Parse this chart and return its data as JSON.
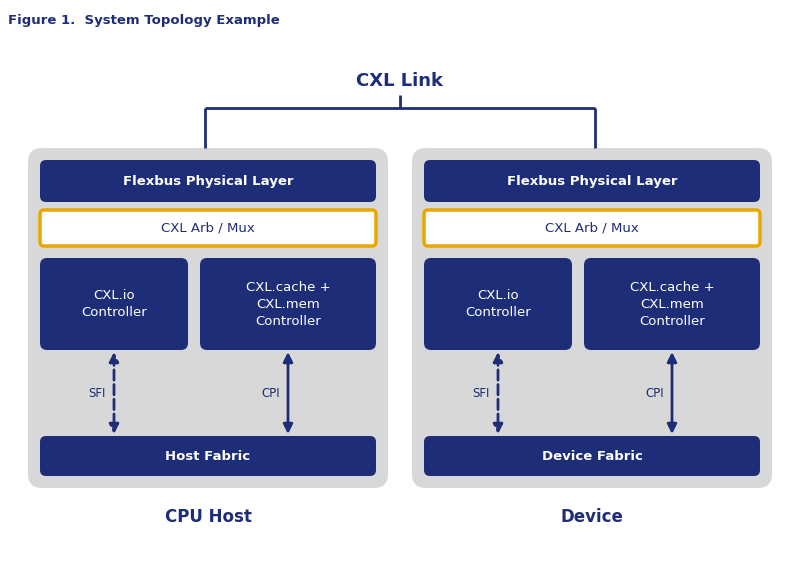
{
  "title": "Figure 1.  System Topology Example",
  "cxl_link_label": "CXL Link",
  "dark_blue": "#1e2d78",
  "light_gray_bg": "#d8d8d8",
  "white": "#ffffff",
  "arrow_color": "#1e2d78",
  "orange_border": "#e8a800",
  "left_box": {
    "label": "CPU Host",
    "flexbus": "Flexbus Physical Layer",
    "arb_mux": "CXL Arb / Mux",
    "controller1": "CXL.io\nController",
    "controller2": "CXL.cache +\nCXL.mem\nController",
    "fabric": "Host Fabric",
    "sfi": "SFI",
    "cpi": "CPI"
  },
  "right_box": {
    "label": "Device",
    "flexbus": "Flexbus Physical Layer",
    "arb_mux": "CXL Arb / Mux",
    "controller1": "CXL.io\nController",
    "controller2": "CXL.cache +\nCXL.mem\nController",
    "fabric": "Device Fabric",
    "sfi": "SFI",
    "cpi": "CPI"
  }
}
